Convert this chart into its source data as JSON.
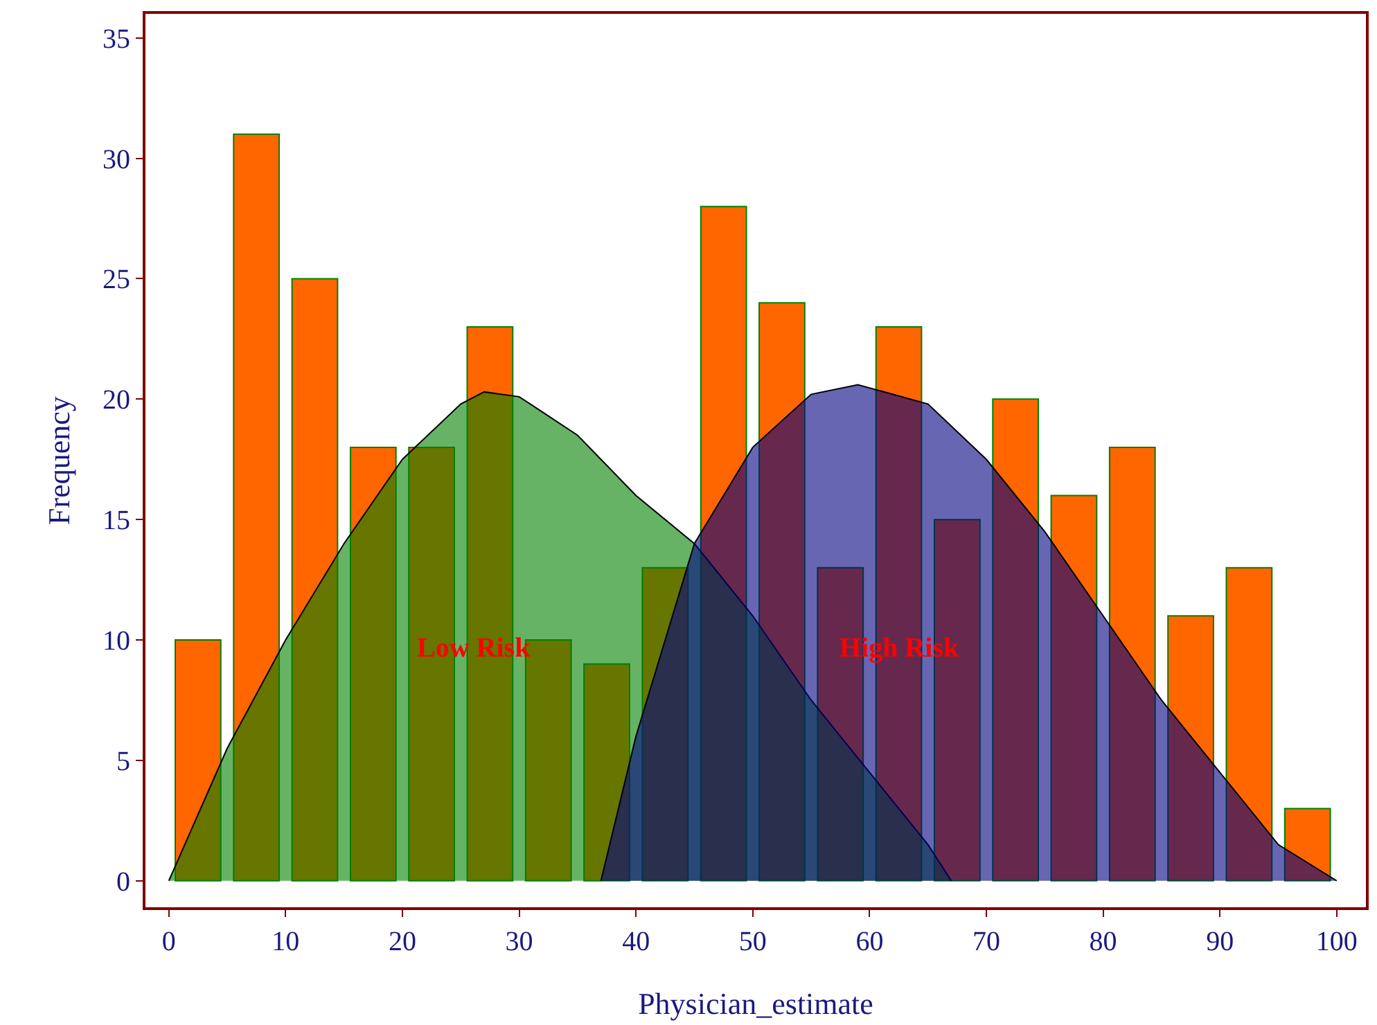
{
  "chart_data": {
    "type": "histogram",
    "xlabel": "Physician_estimate",
    "ylabel": "Frequency",
    "bins": [
      0,
      5,
      10,
      15,
      20,
      25,
      30,
      35,
      40,
      45,
      50,
      55,
      60,
      65,
      70,
      75,
      80,
      85,
      90,
      95,
      100
    ],
    "values": [
      10,
      31,
      25,
      18,
      18,
      23,
      10,
      9,
      13,
      28,
      24,
      13,
      23,
      15,
      20,
      16,
      18,
      11,
      13,
      3
    ],
    "color": "#ff6600",
    "series": [
      {
        "type": "area",
        "color": "#008000",
        "x": [
          0,
          5,
          10,
          15,
          20,
          25,
          27,
          30,
          35,
          40,
          45,
          50,
          55,
          60,
          65,
          67
        ],
        "values": [
          0,
          5.5,
          10,
          14,
          17.5,
          19.8,
          20.3,
          20.1,
          18.5,
          16,
          14,
          11,
          7.5,
          4.5,
          1.5,
          0
        ]
      },
      {
        "type": "area",
        "color": "#000080",
        "x": [
          37,
          40,
          45,
          50,
          55,
          59,
          65,
          70,
          75,
          80,
          85,
          90,
          95,
          100
        ],
        "values": [
          0,
          6,
          14,
          18,
          20.2,
          20.6,
          19.8,
          17.5,
          14.5,
          11,
          7.5,
          4.5,
          1.5,
          0
        ]
      }
    ],
    "annotations": [
      "Low Risk",
      "High Risk"
    ],
    "xlim": [
      -2,
      102.5
    ],
    "ylim": [
      -1.1,
      36
    ],
    "xticks": [
      0,
      10,
      20,
      30,
      40,
      50,
      60,
      70,
      80,
      90,
      100
    ],
    "yticks": [
      0,
      5,
      10,
      15,
      20,
      25,
      30,
      35
    ],
    "grid": false
  }
}
